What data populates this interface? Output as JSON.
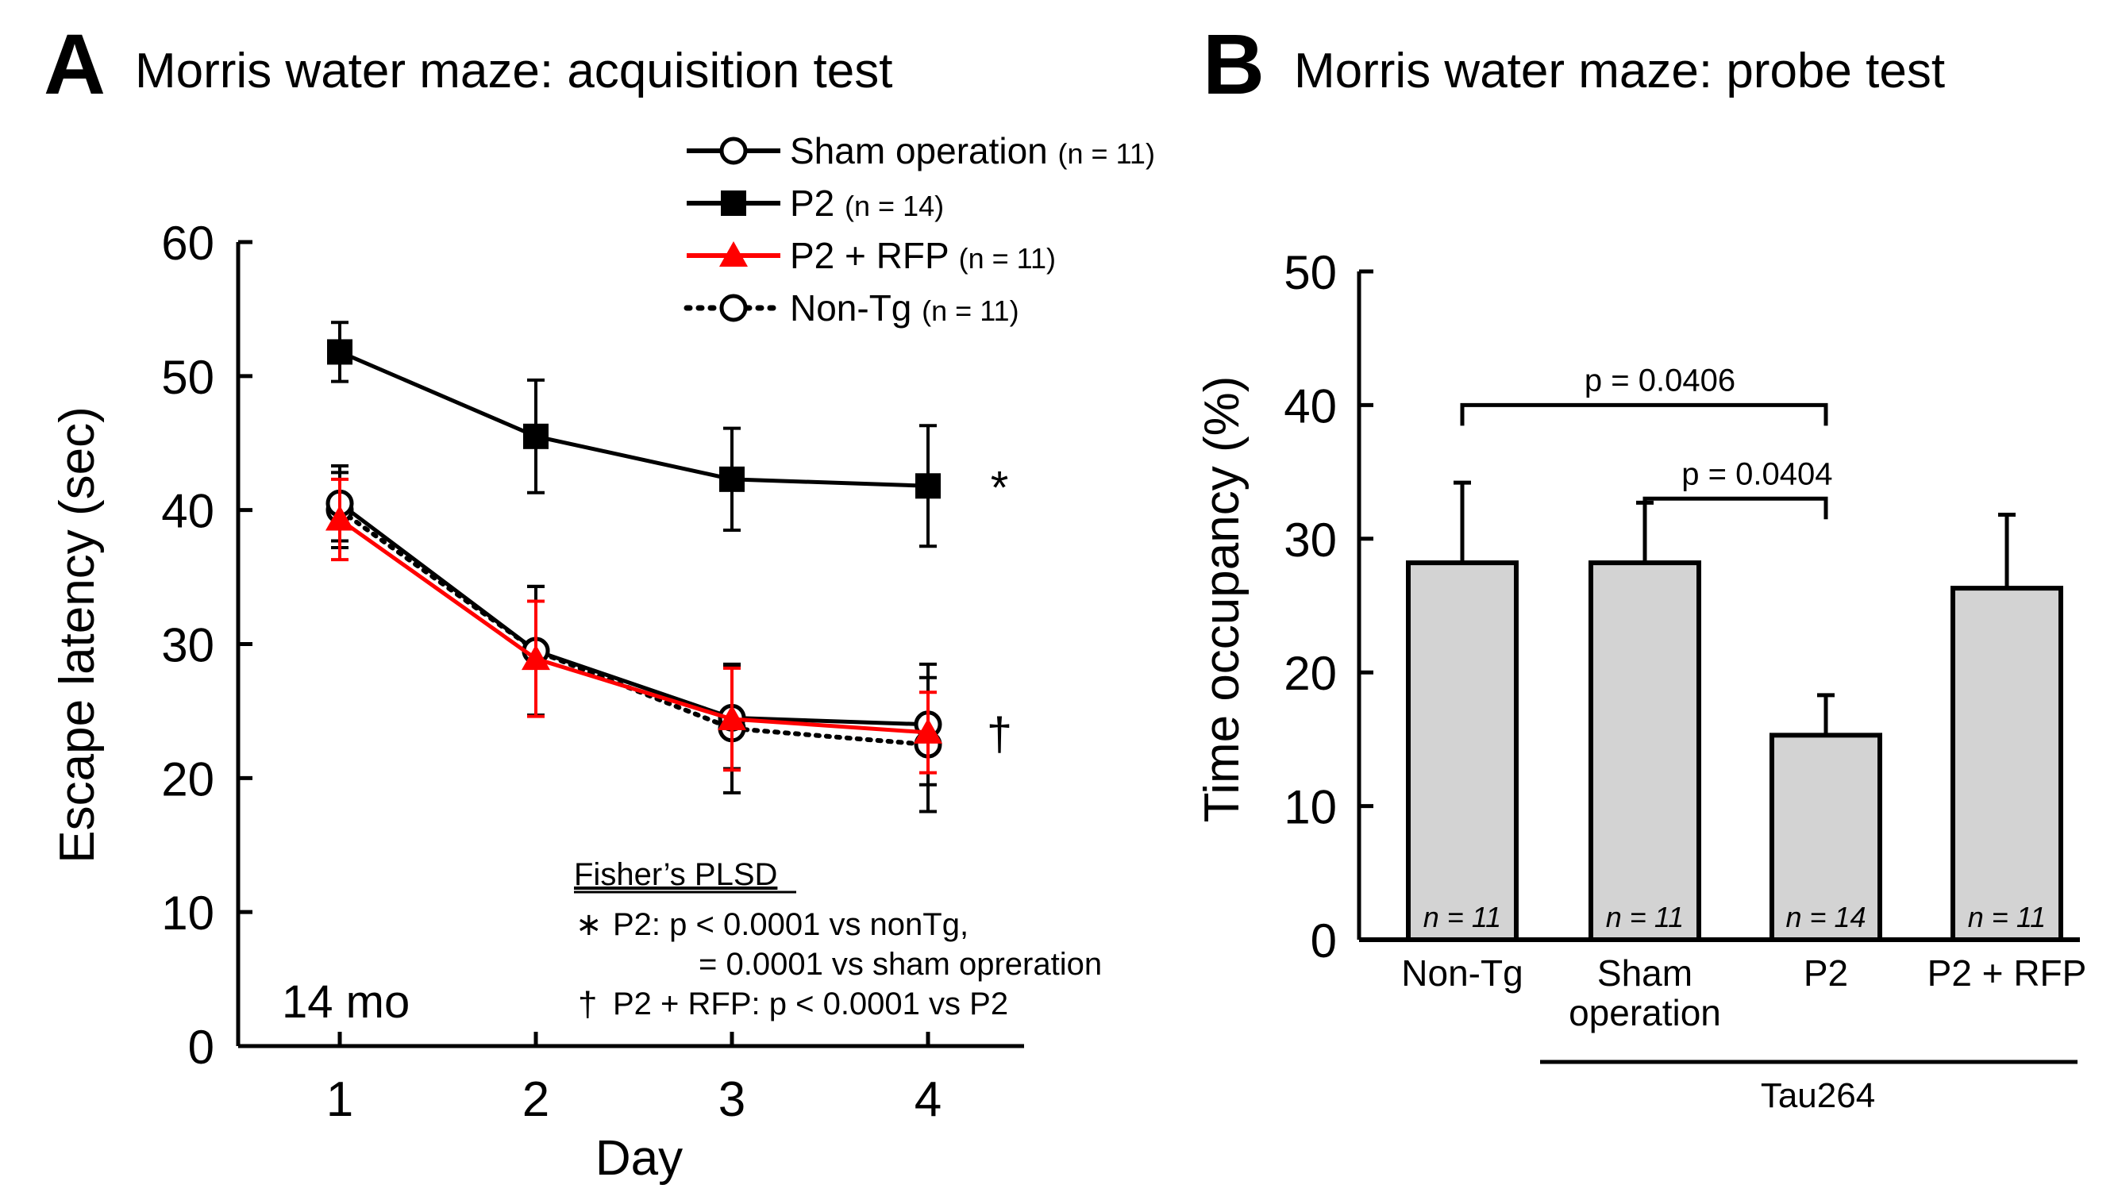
{
  "chart_data": [
    {
      "panel": "A",
      "type": "line",
      "title": "Morris water maze: acquisition test",
      "xlabel": "Day",
      "ylabel": "Escape latency (sec)",
      "x": [
        1,
        2,
        3,
        4
      ],
      "x_tick_labels": [
        "1",
        "2",
        "3",
        "4"
      ],
      "ylim": [
        0,
        60
      ],
      "y_ticks": [
        0,
        10,
        20,
        30,
        40,
        50,
        60
      ],
      "y_tick_labels": [
        "0",
        "10",
        "20",
        "30",
        "40",
        "50",
        "60"
      ],
      "age_label": "14 mo",
      "legend_position": "top-right",
      "series": [
        {
          "name": "Sham operation",
          "n_label": "(n = 11)",
          "n": 11,
          "marker": "open-circle",
          "line": "solid",
          "color": "#000000",
          "values": [
            40.5,
            29.5,
            24.5,
            24.0
          ],
          "errors": [
            2.8,
            4.8,
            3.8,
            4.5
          ]
        },
        {
          "name": "P2",
          "n_label": "(n = 14)",
          "n": 14,
          "marker": "filled-square",
          "line": "solid",
          "color": "#000000",
          "values": [
            51.8,
            45.5,
            42.3,
            41.8
          ],
          "errors": [
            2.2,
            4.2,
            3.8,
            4.5
          ]
        },
        {
          "name": "P2 + RFP",
          "n_label": "(n = 11)",
          "n": 11,
          "marker": "filled-triangle",
          "line": "solid",
          "color": "#ff0000",
          "values": [
            39.3,
            28.9,
            24.4,
            23.4
          ],
          "errors": [
            3.0,
            4.3,
            3.8,
            3.0
          ]
        },
        {
          "name": "Non-Tg",
          "n_label": "(n = 11)",
          "n": 11,
          "marker": "open-circle",
          "line": "dotted",
          "color": "#000000",
          "values": [
            40.0,
            29.5,
            23.7,
            22.5
          ],
          "errors": [
            2.8,
            4.8,
            4.8,
            5.0
          ]
        }
      ],
      "significance_marks": {
        "P2": "*",
        "P2 + RFP": "†"
      },
      "stats": {
        "header": "Fisher’s PLSD",
        "line1_symbol": "∗",
        "line1": "P2: p < 0.0001 vs nonTg,",
        "line2": "= 0.0001 vs sham opreration",
        "line3_symbol": "†",
        "line3": "P2 + RFP: p < 0.0001 vs P2"
      }
    },
    {
      "panel": "B",
      "type": "bar",
      "title": "Morris water maze: probe test",
      "ylabel": "Time occupancy (%)",
      "xlabel": "",
      "ylim": [
        0,
        50
      ],
      "y_ticks": [
        0,
        10,
        20,
        30,
        40,
        50
      ],
      "y_tick_labels": [
        "0",
        "10",
        "20",
        "30",
        "40",
        "50"
      ],
      "categories": [
        "Non-Tg",
        "Sham operation",
        "P2",
        "P2 + RFP"
      ],
      "category_lines": [
        [
          "Non-Tg"
        ],
        [
          "Sham",
          "operation"
        ],
        [
          "P2"
        ],
        [
          "P2 + RFP"
        ]
      ],
      "values": [
        28.2,
        28.2,
        15.3,
        26.3
      ],
      "errors": [
        6.0,
        4.5,
        3.0,
        5.5
      ],
      "n_labels": [
        "n = 11",
        "n = 11",
        "n = 14",
        "n = 11"
      ],
      "bar_color": "#d3d3d3",
      "group_label": "Tau264",
      "comparisons": [
        {
          "from": 0,
          "to": 2,
          "label": "p = 0.0406",
          "level": 40.0
        },
        {
          "from": 1,
          "to": 2,
          "label": "p = 0.0404",
          "level": 33.0
        }
      ]
    }
  ]
}
